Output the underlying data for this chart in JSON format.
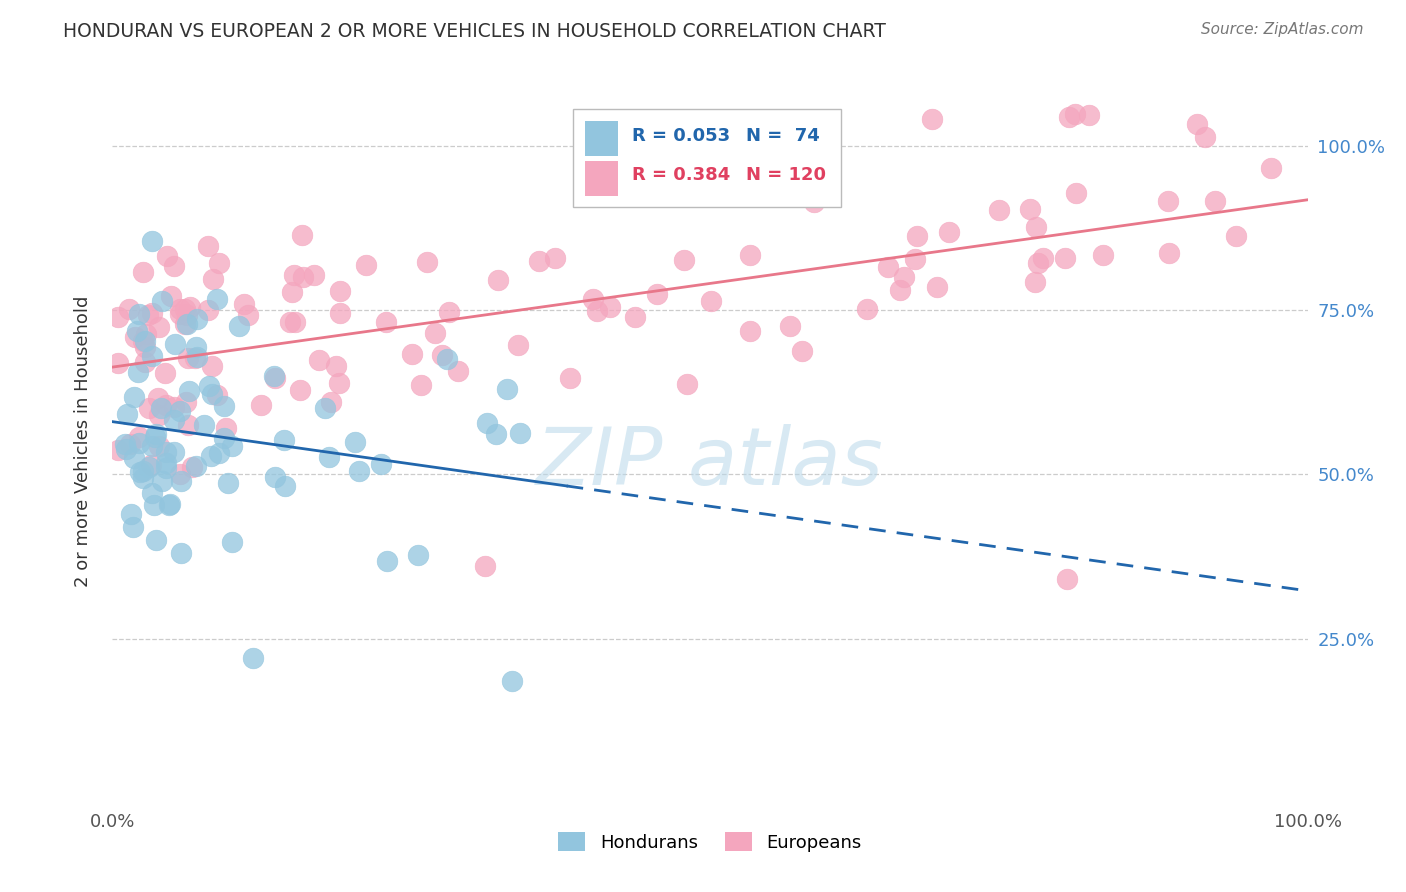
{
  "title": "HONDURAN VS EUROPEAN 2 OR MORE VEHICLES IN HOUSEHOLD CORRELATION CHART",
  "source": "Source: ZipAtlas.com",
  "ylabel": "2 or more Vehicles in Household",
  "legend_blue_r": "R = 0.053",
  "legend_blue_n": "N =  74",
  "legend_pink_r": "R = 0.384",
  "legend_pink_n": "N = 120",
  "legend_label_blue": "Hondurans",
  "legend_label_pink": "Europeans",
  "xmin": 0.0,
  "xmax": 1.0,
  "ymin": 0.0,
  "ymax": 1.1,
  "blue_color": "#92c5de",
  "pink_color": "#f4a6be",
  "blue_line_color": "#2166ac",
  "pink_line_color": "#e8778a",
  "tick_color": "#4488cc",
  "title_color": "#333333",
  "source_color": "#777777",
  "watermark_color": "#b8d8ea",
  "grid_color": "#cccccc"
}
